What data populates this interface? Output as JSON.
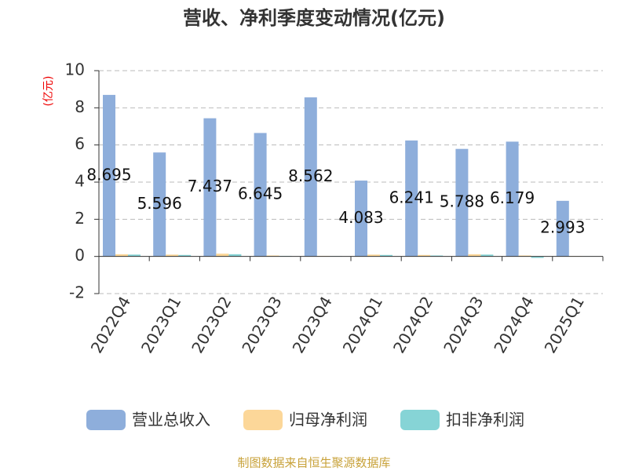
{
  "chart_data": {
    "type": "bar",
    "title": "营收、净利季度变动情况(亿元)",
    "y_label": "(亿元)",
    "categories": [
      "2022Q4",
      "2023Q1",
      "2023Q2",
      "2023Q3",
      "2023Q4",
      "2024Q1",
      "2024Q2",
      "2024Q3",
      "2024Q4",
      "2025Q1"
    ],
    "series": [
      {
        "name": "营业总收入",
        "color": "#8eaedb",
        "values": [
          8.695,
          5.596,
          7.437,
          6.645,
          8.562,
          4.083,
          6.241,
          5.788,
          6.179,
          2.993
        ],
        "labels": true
      },
      {
        "name": "归母净利润",
        "color": "#fcd799",
        "values": [
          0.12,
          0.1,
          0.15,
          0.05,
          0.03,
          0.1,
          0.08,
          0.12,
          0.05,
          0.02
        ]
      },
      {
        "name": "扣非净利润",
        "color": "#86d4d6",
        "values": [
          0.1,
          0.08,
          0.12,
          0.03,
          0.02,
          0.08,
          0.05,
          0.1,
          -0.08,
          0.01
        ]
      }
    ],
    "ylim": [
      -2,
      10
    ],
    "yticks": [
      -2,
      0,
      2,
      4,
      6,
      8,
      10
    ],
    "grid": true,
    "source": "制图数据来自恒生聚源数据库"
  }
}
